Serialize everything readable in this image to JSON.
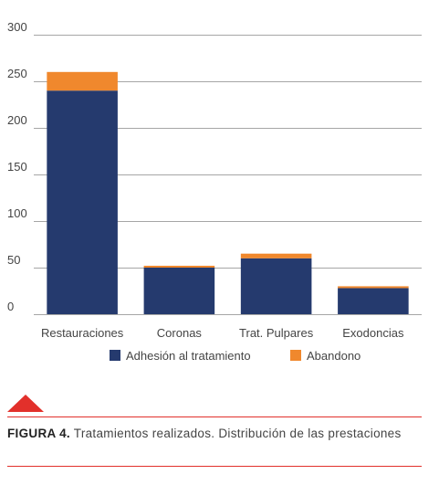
{
  "chart_data": {
    "type": "stacked-bar",
    "categories": [
      "Restauraciones",
      "Coronas",
      "Trat. Pulpares",
      "Exodoncias"
    ],
    "series": [
      {
        "name": "Adhesión al tratamiento",
        "color": "#253a6e",
        "values": [
          240,
          50,
          60,
          28
        ]
      },
      {
        "name": "Abandono",
        "color": "#f0882d",
        "values": [
          20,
          2,
          5,
          2
        ]
      }
    ],
    "ylim": [
      0,
      300
    ],
    "yticks": [
      0,
      50,
      100,
      150,
      200,
      250,
      300
    ],
    "grid": true,
    "legend": "bottom",
    "caption_label": "FIGURA 4.",
    "caption": "Tratamientos realizados. Distribución de las prestaciones"
  }
}
